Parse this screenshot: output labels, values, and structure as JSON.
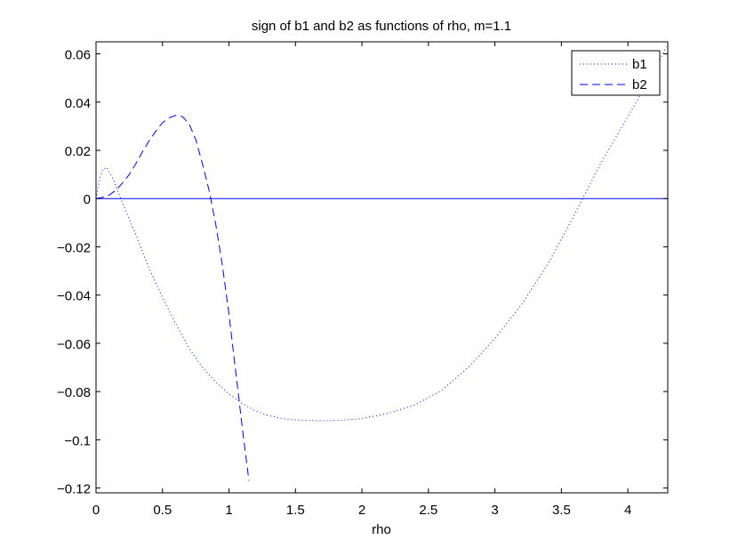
{
  "chart_data": {
    "type": "line",
    "title": "sign of b1 and b2 as functions of rho, m=1.1",
    "xlabel": "rho",
    "ylabel": "",
    "xlim": [
      0,
      4.3
    ],
    "ylim": [
      -0.122,
      0.065
    ],
    "xticks": [
      "0",
      "0.5",
      "1",
      "1.5",
      "2",
      "2.5",
      "3",
      "3.5",
      "4"
    ],
    "yticks": [
      "0.06",
      "0.04",
      "0.02",
      "0",
      "−0.02",
      "−0.04",
      "−0.06",
      "−0.08",
      "−0.1",
      "−0.12"
    ],
    "xtick_values": [
      0,
      0.5,
      1,
      1.5,
      2,
      2.5,
      3,
      3.5,
      4
    ],
    "ytick_values": [
      0.06,
      0.04,
      0.02,
      0,
      -0.02,
      -0.04,
      -0.06,
      -0.08,
      -0.1,
      -0.12
    ],
    "legend_position": "top-right",
    "grid": false,
    "series": [
      {
        "name": "b1",
        "style": "dotted",
        "color": "#0000ff",
        "x": [
          0,
          0.03,
          0.05,
          0.08,
          0.1,
          0.13,
          0.15,
          0.2,
          0.3,
          0.4,
          0.5,
          0.6,
          0.7,
          0.8,
          0.9,
          1.0,
          1.1,
          1.2,
          1.3,
          1.4,
          1.5,
          1.6,
          1.7,
          1.8,
          1.9,
          2.0,
          2.2,
          2.4,
          2.6,
          2.8,
          3.0,
          3.2,
          3.4,
          3.6,
          3.66,
          3.8,
          4.0,
          4.2,
          4.29
        ],
        "values": [
          0.0,
          0.009,
          0.012,
          0.013,
          0.011,
          0.008,
          0.005,
          -0.002,
          -0.015,
          -0.029,
          -0.041,
          -0.052,
          -0.062,
          -0.07,
          -0.076,
          -0.081,
          -0.085,
          -0.088,
          -0.09,
          -0.0912,
          -0.0918,
          -0.092,
          -0.0921,
          -0.092,
          -0.0917,
          -0.0912,
          -0.089,
          -0.0855,
          -0.0795,
          -0.07,
          -0.058,
          -0.044,
          -0.027,
          -0.0065,
          0.0,
          0.015,
          0.034,
          0.053,
          0.063
        ]
      },
      {
        "name": "b2",
        "style": "dashed",
        "color": "#0000ff",
        "x": [
          0,
          0.05,
          0.1,
          0.15,
          0.2,
          0.25,
          0.3,
          0.35,
          0.4,
          0.45,
          0.5,
          0.55,
          0.6,
          0.65,
          0.7,
          0.75,
          0.8,
          0.85,
          0.9,
          0.95,
          1.0,
          1.05,
          1.1,
          1.15
        ],
        "values": [
          0.0,
          0.0005,
          0.0015,
          0.0035,
          0.0065,
          0.01,
          0.0145,
          0.0195,
          0.024,
          0.028,
          0.0315,
          0.0335,
          0.0345,
          0.034,
          0.031,
          0.0245,
          0.0145,
          0.0035,
          -0.0105,
          -0.0275,
          -0.048,
          -0.0715,
          -0.095,
          -0.117
        ]
      },
      {
        "name": "",
        "style": "solid",
        "color": "#0000ff",
        "x": [
          0,
          4.3
        ],
        "values": [
          0,
          0
        ]
      }
    ]
  }
}
